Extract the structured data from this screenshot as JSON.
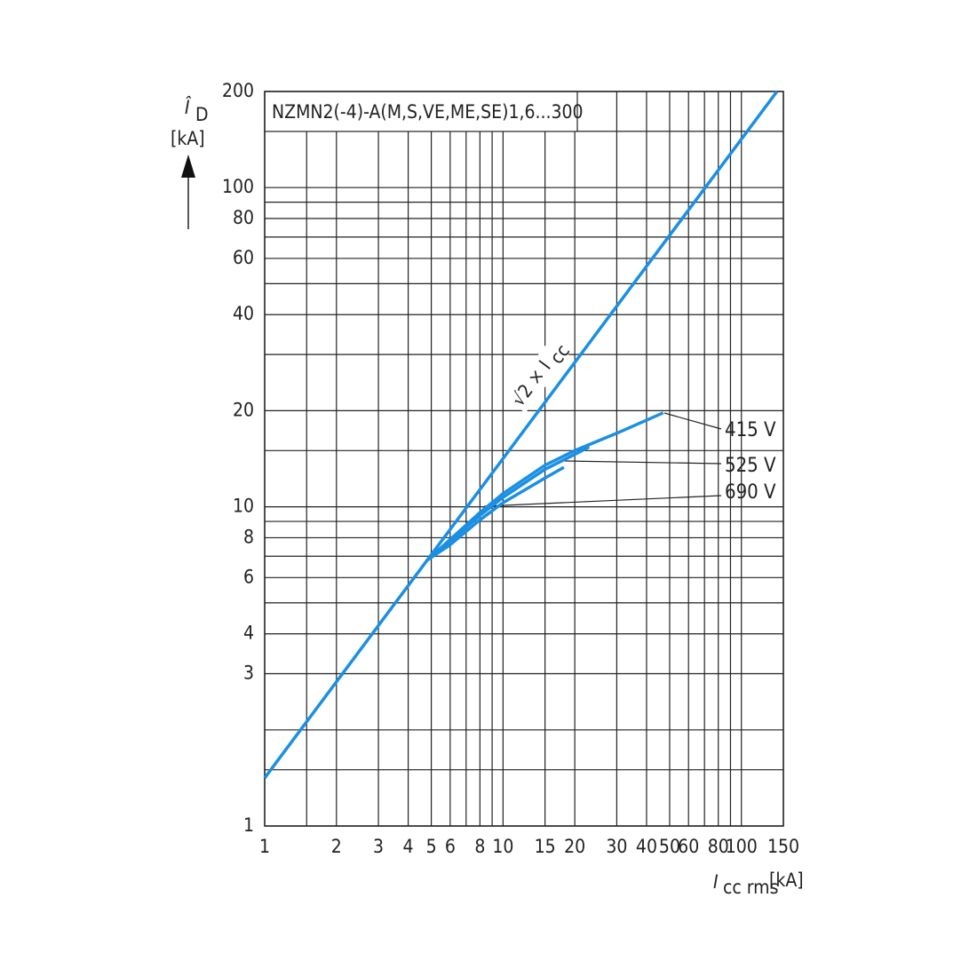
{
  "chart_data": {
    "type": "line",
    "title": "NZMN2(-4)-A(M,S,VE,ME,SE)1,6...300",
    "y_label": {
      "symbol": "Î",
      "subscript": "D",
      "unit": "[kA]"
    },
    "x_label": {
      "symbol": "I",
      "subscript": "cc rms",
      "unit": "[kA]"
    },
    "line_annotation": {
      "text": "√2 × I",
      "subscript": "cc"
    },
    "log_x": true,
    "log_y": true,
    "grid": true,
    "xlim": [
      1,
      150
    ],
    "ylim": [
      1,
      200
    ],
    "xticks": [
      1,
      2,
      3,
      4,
      5,
      6,
      8,
      10,
      15,
      20,
      30,
      40,
      50,
      60,
      80,
      100,
      150
    ],
    "yticks": [
      1,
      3,
      4,
      6,
      8,
      10,
      20,
      40,
      60,
      80,
      100,
      200
    ],
    "xgrid": [
      1.5,
      7,
      9,
      70,
      90
    ],
    "ygrid": [
      1.5,
      2,
      5,
      7,
      9,
      15,
      30,
      50,
      70,
      90,
      150
    ],
    "series": [
      {
        "name": "√2 × Icc",
        "color": "#1a8fe3",
        "x": [
          1,
          141
        ],
        "values": [
          1.414,
          200
        ]
      },
      {
        "name": "415 V",
        "color": "#1a8fe3",
        "x": [
          4.8,
          6,
          8,
          10,
          15,
          20,
          30,
          47
        ],
        "values": [
          6.8,
          7.9,
          9.6,
          11,
          13.5,
          15,
          17,
          19.7
        ]
      },
      {
        "name": "525 V",
        "color": "#1a8fe3",
        "x": [
          4.8,
          6,
          8,
          10,
          15,
          20,
          23
        ],
        "values": [
          6.8,
          7.8,
          9.4,
          10.7,
          13.1,
          14.6,
          15.4
        ]
      },
      {
        "name": "690 V",
        "color": "#1a8fe3",
        "x": [
          4.8,
          6,
          8,
          10,
          15,
          18
        ],
        "values": [
          6.8,
          7.6,
          9.1,
          10.3,
          12.3,
          13.3
        ]
      }
    ]
  }
}
